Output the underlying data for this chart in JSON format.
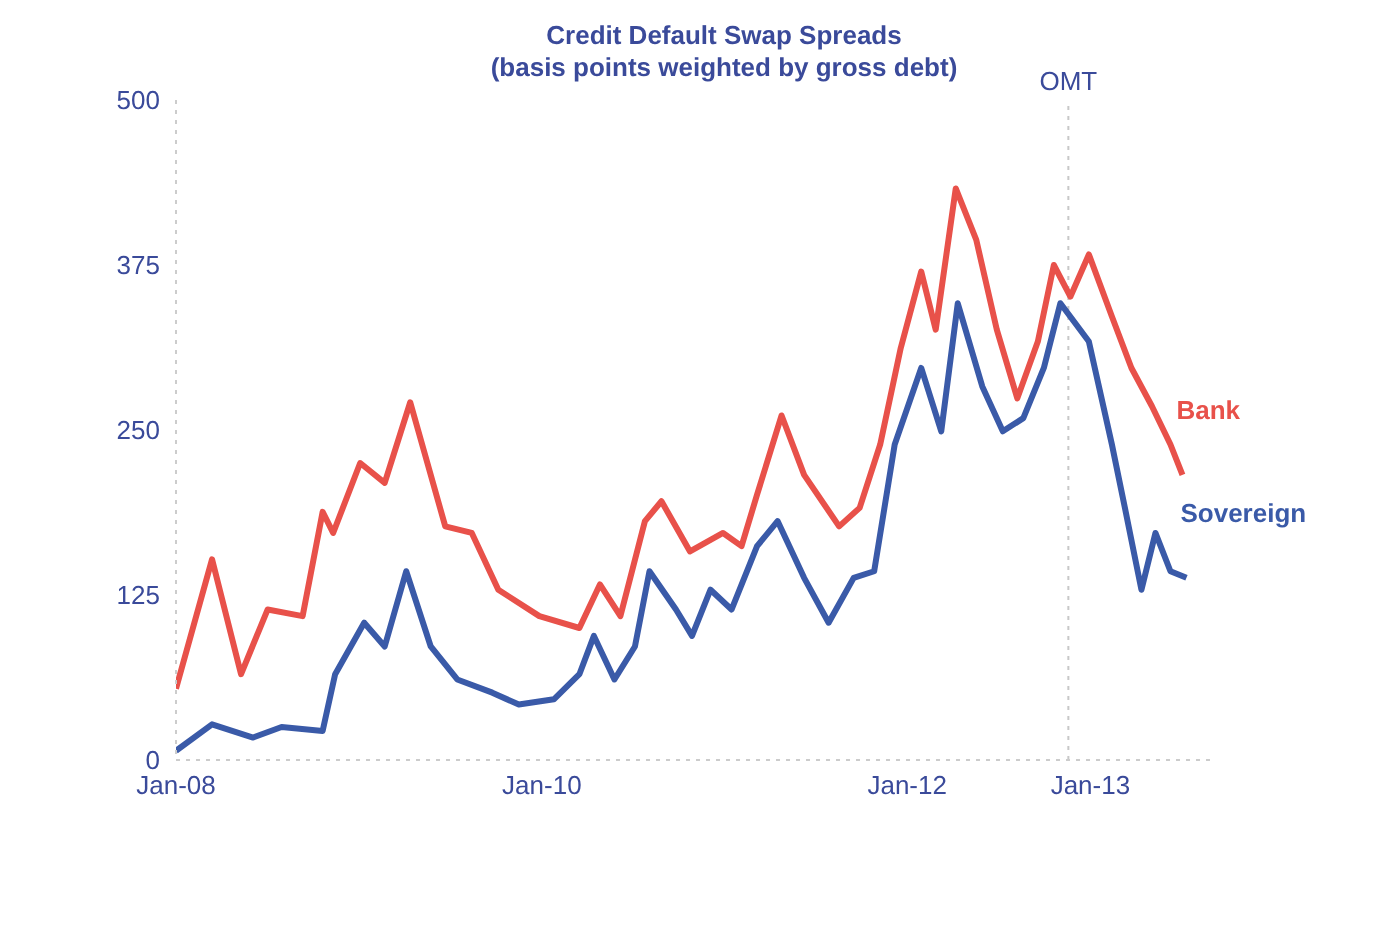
{
  "chart_data": {
    "type": "line",
    "title": "Credit Default Swap Spreads",
    "subtitle": "(basis points weighted by gross debt)",
    "xlim": [
      "2008-01-01",
      "2013-09-01"
    ],
    "xticks": [
      {
        "value": "2008-01-01",
        "label": "Jan-08"
      },
      {
        "value": "2010-01-01",
        "label": "Jan-10"
      },
      {
        "value": "2012-01-01",
        "label": "Jan-12"
      },
      {
        "value": "2013-01-01",
        "label": "Jan-13"
      }
    ],
    "ylim": [
      0,
      500
    ],
    "yticks": [
      0,
      125,
      250,
      375,
      500
    ],
    "grid": false,
    "legend": false,
    "marker": "none",
    "line_style": "solid",
    "ref_lines": [
      {
        "axis": "x",
        "value": "2012-11-18",
        "label": "OMT",
        "color": "#c8c8c8",
        "line_style": "dotted"
      }
    ],
    "series": [
      {
        "name": "Bank",
        "color": "#e8514a",
        "x": [
          "2008-01-01",
          "2008-03-13",
          "2008-05-10",
          "2008-07-02",
          "2008-09-10",
          "2008-10-20",
          "2008-11-10",
          "2009-01-03",
          "2009-02-21",
          "2009-04-13",
          "2009-06-22",
          "2009-08-14",
          "2009-10-06",
          "2009-12-27",
          "2010-03-17",
          "2010-04-27",
          "2010-06-07",
          "2010-07-26",
          "2010-08-28",
          "2010-10-24",
          "2010-12-29",
          "2011-02-04",
          "2011-03-07",
          "2011-04-25",
          "2011-06-09",
          "2011-08-18",
          "2011-09-28",
          "2011-11-08",
          "2011-12-19",
          "2012-01-29",
          "2012-02-27",
          "2012-04-07",
          "2012-05-18",
          "2012-06-28",
          "2012-08-08",
          "2012-09-18",
          "2012-10-20",
          "2012-11-22",
          "2012-12-29",
          "2013-02-13",
          "2013-03-24",
          "2013-05-04",
          "2013-06-10",
          "2013-07-04"
        ],
        "values": [
          54,
          152,
          65,
          114,
          109,
          188,
          172,
          225,
          210,
          271,
          177,
          172,
          129,
          109,
          100,
          133,
          109,
          181,
          196,
          158,
          172,
          162,
          201,
          261,
          216,
          177,
          191,
          239,
          312,
          370,
          326,
          433,
          394,
          326,
          274,
          317,
          375,
          351,
          383,
          336,
          297,
          268,
          239,
          216
        ]
      },
      {
        "name": "Sovereign",
        "color": "#3a5aa8",
        "x": [
          "2008-01-01",
          "2008-03-13",
          "2008-06-03",
          "2008-07-30",
          "2008-10-20",
          "2008-11-14",
          "2009-01-11",
          "2009-02-21",
          "2009-04-05",
          "2009-05-24",
          "2009-07-16",
          "2009-09-24",
          "2009-11-16",
          "2010-01-25",
          "2010-03-17",
          "2010-04-15",
          "2010-05-26",
          "2010-07-06",
          "2010-08-04",
          "2010-09-26",
          "2010-10-28",
          "2010-12-04",
          "2011-01-15",
          "2011-03-07",
          "2011-04-17",
          "2011-06-09",
          "2011-07-28",
          "2011-09-16",
          "2011-10-27",
          "2011-12-07",
          "2012-01-29",
          "2012-03-09",
          "2012-04-11",
          "2012-05-30",
          "2012-07-10",
          "2012-08-20",
          "2012-09-30",
          "2012-11-02",
          "2012-12-29",
          "2013-02-13",
          "2013-03-11",
          "2013-04-13",
          "2013-05-11",
          "2013-06-10",
          "2013-07-12"
        ],
        "values": [
          7,
          27,
          17,
          25,
          22,
          65,
          104,
          86,
          143,
          86,
          61,
          51,
          42,
          46,
          65,
          94,
          61,
          86,
          143,
          114,
          94,
          129,
          114,
          162,
          181,
          138,
          104,
          138,
          143,
          239,
          297,
          249,
          346,
          283,
          249,
          259,
          297,
          346,
          317,
          239,
          191,
          129,
          172,
          143,
          138
        ]
      }
    ]
  }
}
